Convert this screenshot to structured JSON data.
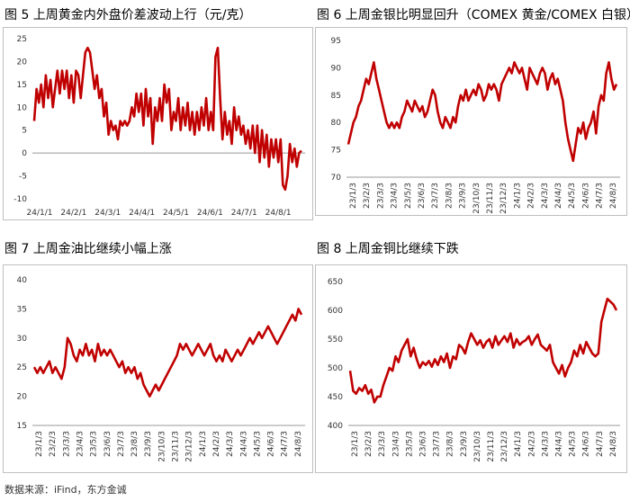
{
  "source": "数据来源：iFind，东方金诚",
  "colors": {
    "line": "#c00000",
    "axis": "#999999",
    "zero": "#999999",
    "frame": "#bfbfbf"
  },
  "chart_data": [
    {
      "type": "line",
      "title": "图 5  上周黄金内外盘价差波动上行（元/克）",
      "ylim": [
        -10,
        25
      ],
      "yticks": [
        "25",
        "20",
        "15",
        "10",
        "5",
        "0",
        "-5",
        "-10"
      ],
      "xticks": [
        "24/1/1",
        "24/2/1",
        "24/3/1",
        "24/4/1",
        "24/5/1",
        "24/6/1",
        "24/7/1",
        "24/8/1"
      ],
      "xlabel": "",
      "ylabel": "",
      "series": [
        {
          "values": [
            7,
            14,
            11,
            15,
            10,
            17,
            12,
            16,
            10,
            14,
            18,
            13,
            18,
            14,
            18,
            12,
            17,
            11,
            18,
            17,
            12,
            17,
            22,
            23,
            22,
            18,
            14,
            17,
            12,
            14,
            8,
            11,
            4,
            7,
            5,
            6,
            3,
            7,
            6,
            7,
            6,
            7,
            10,
            8,
            13,
            9,
            13,
            6,
            14,
            8,
            12,
            2,
            10,
            7,
            12,
            7,
            15,
            11,
            14,
            5,
            9,
            7,
            12,
            5,
            10,
            6,
            11,
            5,
            9,
            4,
            9,
            5,
            10,
            6,
            12,
            5,
            9,
            5,
            21,
            23,
            12,
            3,
            9,
            4,
            7,
            2,
            10,
            5,
            8,
            4,
            6,
            2,
            5,
            1,
            6,
            0,
            6,
            -2,
            5,
            -1,
            4,
            -3,
            3,
            -1,
            3,
            -2,
            3,
            -7,
            -8,
            -5,
            2,
            -2,
            1,
            -3,
            0,
            0.5
          ]
        }
      ]
    },
    {
      "type": "line",
      "title": "图 6  上周金银比明显回升（COMEX 黄金/COMEX 白银）",
      "ylim": [
        70,
        95
      ],
      "yticks": [
        "95",
        "90",
        "85",
        "80",
        "75",
        "70"
      ],
      "xticks": [
        "23/1/3",
        "23/2/3",
        "23/3/3",
        "23/4/3",
        "23/5/3",
        "23/6/3",
        "23/7/3",
        "23/8/3",
        "23/9/3",
        "23/10/3",
        "23/11/3",
        "23/12/3",
        "24/1/3",
        "24/2/3",
        "24/3/3",
        "24/4/3",
        "24/5/3",
        "24/6/3",
        "24/7/3",
        "24/8/3"
      ],
      "xlabel": "",
      "ylabel": "",
      "series": [
        {
          "values": [
            76,
            78,
            80,
            81,
            83,
            84,
            86,
            88,
            87,
            89,
            91,
            88,
            86,
            84,
            82,
            80,
            79,
            80,
            79,
            80,
            79,
            81,
            82,
            84,
            83,
            82,
            84,
            83,
            82,
            83,
            81,
            82,
            84,
            86,
            85,
            82,
            80,
            79,
            81,
            80,
            79,
            81,
            80,
            83,
            85,
            84,
            86,
            84,
            85,
            86,
            85,
            87,
            86,
            84,
            85,
            87,
            86,
            87,
            86,
            84,
            87,
            88,
            89,
            90,
            89,
            91,
            90,
            89,
            90,
            88,
            86,
            90,
            89,
            88,
            87,
            89,
            90,
            89,
            86,
            88,
            89,
            87,
            88,
            86,
            84,
            80,
            77,
            75,
            73,
            76,
            79,
            78,
            80,
            77,
            79,
            80,
            82,
            78,
            83,
            85,
            84,
            89,
            91,
            88,
            86,
            87
          ]
        }
      ]
    },
    {
      "type": "line",
      "title": "图 7  上周金油比继续小幅上涨",
      "ylim": [
        15,
        40
      ],
      "yticks": [
        "40",
        "35",
        "30",
        "25",
        "20",
        "15"
      ],
      "xticks": [
        "23/1/3",
        "23/2/3",
        "23/3/3",
        "23/4/3",
        "23/5/3",
        "23/6/3",
        "23/7/3",
        "23/8/3",
        "23/9/3",
        "23/10/3",
        "23/11/3",
        "23/12/3",
        "24/1/3",
        "24/2/3",
        "24/3/3",
        "24/4/3",
        "24/5/3",
        "24/6/3",
        "24/7/3",
        "24/8/3"
      ],
      "xlabel": "",
      "ylabel": "",
      "series": [
        {
          "values": [
            25,
            24,
            25,
            24,
            25,
            26,
            24,
            25,
            24,
            23,
            25,
            30,
            29,
            27,
            26,
            28,
            27,
            29,
            27,
            28,
            26,
            29,
            27,
            28,
            27,
            28,
            27,
            26,
            25,
            26,
            24,
            25,
            24,
            25,
            23,
            24,
            22,
            21,
            20,
            21,
            22,
            21,
            22,
            23,
            24,
            25,
            26,
            27,
            29,
            28,
            29,
            28,
            27,
            28,
            29,
            28,
            27,
            28,
            29,
            27,
            26,
            27,
            26,
            28,
            27,
            26,
            27,
            28,
            27,
            28,
            29,
            30,
            29,
            30,
            31,
            30,
            31,
            32,
            31,
            30,
            29,
            30,
            31,
            32,
            33,
            34,
            33,
            35,
            34
          ]
        }
      ]
    },
    {
      "type": "line",
      "title": "图 8  上周金铜比继续下跌",
      "ylim": [
        400,
        650
      ],
      "yticks": [
        "650",
        "600",
        "550",
        "500",
        "450",
        "400"
      ],
      "xticks": [
        "23/1/3",
        "23/2/3",
        "23/3/3",
        "23/4/3",
        "23/5/3",
        "23/6/3",
        "23/7/3",
        "23/8/3",
        "23/9/3",
        "23/10/3",
        "23/11/3",
        "23/12/3",
        "24/1/3",
        "24/2/3",
        "24/3/3",
        "24/4/3",
        "24/5/3",
        "24/6/3",
        "24/7/3",
        "24/8/3"
      ],
      "xlabel": "",
      "ylabel": "",
      "series": [
        {
          "values": [
            495,
            460,
            455,
            465,
            460,
            470,
            455,
            462,
            440,
            450,
            450,
            470,
            485,
            500,
            495,
            520,
            510,
            530,
            540,
            550,
            520,
            535,
            515,
            500,
            510,
            505,
            512,
            502,
            515,
            505,
            520,
            510,
            525,
            500,
            520,
            515,
            540,
            535,
            525,
            545,
            560,
            550,
            540,
            548,
            535,
            545,
            550,
            535,
            555,
            540,
            548,
            555,
            545,
            560,
            535,
            550,
            540,
            545,
            548,
            555,
            540,
            550,
            558,
            540,
            535,
            530,
            540,
            510,
            500,
            490,
            505,
            485,
            500,
            510,
            530,
            520,
            540,
            525,
            545,
            535,
            525,
            520,
            525,
            580,
            600,
            620,
            615,
            610,
            600
          ]
        }
      ]
    }
  ]
}
